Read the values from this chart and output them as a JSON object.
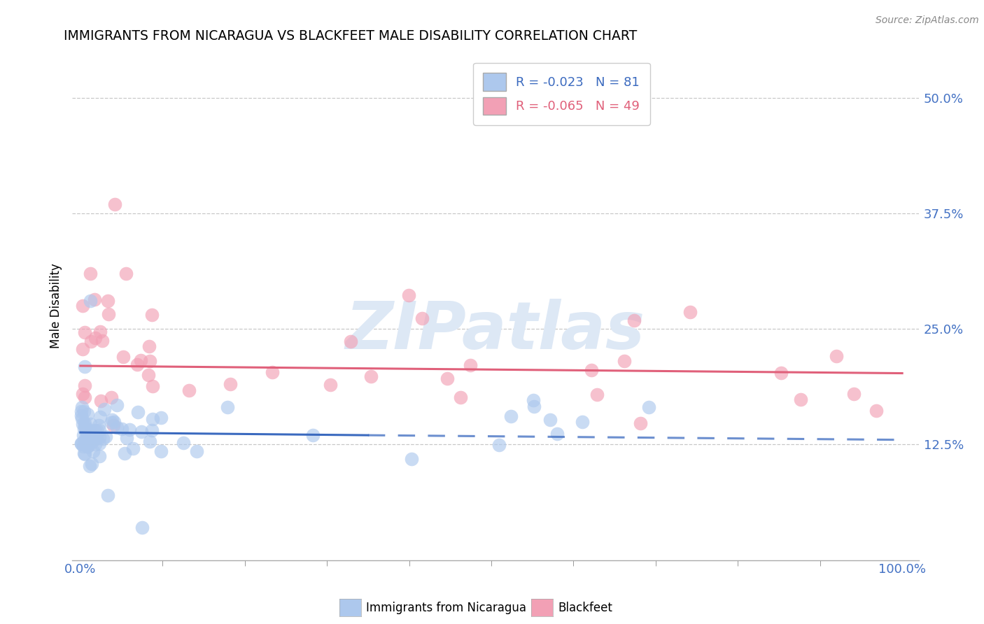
{
  "title": "IMMIGRANTS FROM NICARAGUA VS BLACKFEET MALE DISABILITY CORRELATION CHART",
  "source": "Source: ZipAtlas.com",
  "ylabel": "Male Disability",
  "xlim": [
    0.0,
    100.0
  ],
  "ylim": [
    0.0,
    55.0
  ],
  "ytick_vals": [
    0.0,
    12.5,
    25.0,
    37.5,
    50.0
  ],
  "ytick_labels": [
    "",
    "12.5%",
    "25.0%",
    "37.5%",
    "50.0%"
  ],
  "xtick_vals": [
    0.0,
    100.0
  ],
  "xtick_labels": [
    "0.0%",
    "100.0%"
  ],
  "xtick_minor_vals": [
    10.0,
    20.0,
    30.0,
    40.0,
    50.0,
    60.0,
    70.0,
    80.0,
    90.0
  ],
  "blue_R": -0.023,
  "blue_N": 81,
  "pink_R": -0.065,
  "pink_N": 49,
  "blue_color": "#adc8ed",
  "pink_color": "#f2a0b5",
  "blue_line_color": "#3b6abf",
  "pink_line_color": "#e0607a",
  "watermark": "ZIPatlas",
  "watermark_color": "#dde8f5",
  "pink_trend_start_y": 21.0,
  "pink_trend_end_y": 20.2,
  "blue_trend_start_y": 13.8,
  "blue_trend_solid_end_x": 35.0,
  "blue_trend_solid_end_y": 13.5,
  "blue_trend_end_y": 13.0
}
